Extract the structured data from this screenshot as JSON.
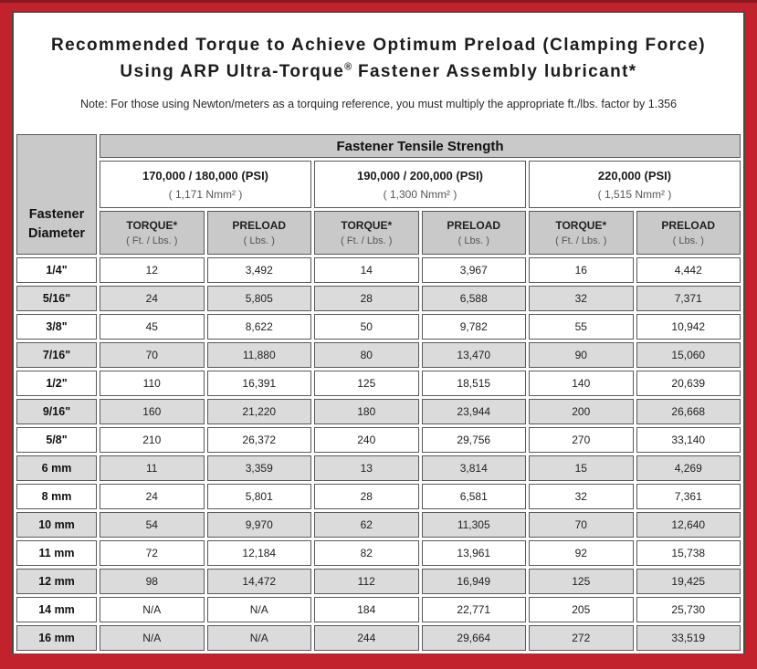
{
  "colors": {
    "frame-red": "#c2222b",
    "frame-top-strip": "#8f161c",
    "panel-border": "#4a4a4a",
    "cell-border": "#595959",
    "header-gray": "#c9c9c9",
    "stripe-gray": "#dbdbdb",
    "text-dark": "#1c1c1c",
    "text-muted": "#555555"
  },
  "title": {
    "line1": "Recommended Torque to Achieve Optimum Preload (Clamping Force)",
    "line2_pre": "Using ARP Ultra-Torque",
    "line2_reg_mark": "®",
    "line2_post": " Fastener Assembly lubricant*"
  },
  "note": "Note: For those using Newton/meters as a torquing reference, you must multiply the appropriate ft./lbs. factor by 1.356",
  "table": {
    "corner_header": {
      "line1": "Fastener",
      "line2": "Diameter"
    },
    "group_header": "Fastener Tensile Strength",
    "strength_groups": [
      {
        "psi": "170,000 / 180,000 (PSI)",
        "nmm": "( 1,171 Nmm² )"
      },
      {
        "psi": "190,000 / 200,000 (PSI)",
        "nmm": "( 1,300 Nmm² )"
      },
      {
        "psi": "220,000 (PSI)",
        "nmm": "( 1,515 Nmm² )"
      }
    ],
    "sub_headers": {
      "torque_label": "TORQUE*",
      "torque_unit": "( Ft. / Lbs. )",
      "preload_label": "PRELOAD",
      "preload_unit": "( Lbs. )"
    },
    "rows": [
      {
        "diameter": "1/4\"",
        "values": [
          "12",
          "3,492",
          "14",
          "3,967",
          "16",
          "4,442"
        ]
      },
      {
        "diameter": "5/16\"",
        "values": [
          "24",
          "5,805",
          "28",
          "6,588",
          "32",
          "7,371"
        ]
      },
      {
        "diameter": "3/8\"",
        "values": [
          "45",
          "8,622",
          "50",
          "9,782",
          "55",
          "10,942"
        ]
      },
      {
        "diameter": "7/16\"",
        "values": [
          "70",
          "11,880",
          "80",
          "13,470",
          "90",
          "15,060"
        ]
      },
      {
        "diameter": "1/2\"",
        "values": [
          "110",
          "16,391",
          "125",
          "18,515",
          "140",
          "20,639"
        ]
      },
      {
        "diameter": "9/16\"",
        "values": [
          "160",
          "21,220",
          "180",
          "23,944",
          "200",
          "26,668"
        ]
      },
      {
        "diameter": "5/8\"",
        "values": [
          "210",
          "26,372",
          "240",
          "29,756",
          "270",
          "33,140"
        ]
      },
      {
        "diameter": "6 mm",
        "values": [
          "11",
          "3,359",
          "13",
          "3,814",
          "15",
          "4,269"
        ]
      },
      {
        "diameter": "8 mm",
        "values": [
          "24",
          "5,801",
          "28",
          "6,581",
          "32",
          "7,361"
        ]
      },
      {
        "diameter": "10 mm",
        "values": [
          "54",
          "9,970",
          "62",
          "11,305",
          "70",
          "12,640"
        ]
      },
      {
        "diameter": "11 mm",
        "values": [
          "72",
          "12,184",
          "82",
          "13,961",
          "92",
          "15,738"
        ]
      },
      {
        "diameter": "12 mm",
        "values": [
          "98",
          "14,472",
          "112",
          "16,949",
          "125",
          "19,425"
        ]
      },
      {
        "diameter": "14 mm",
        "values": [
          "N/A",
          "N/A",
          "184",
          "22,771",
          "205",
          "25,730"
        ]
      },
      {
        "diameter": "16 mm",
        "values": [
          "N/A",
          "N/A",
          "244",
          "29,664",
          "272",
          "33,519"
        ]
      }
    ]
  }
}
